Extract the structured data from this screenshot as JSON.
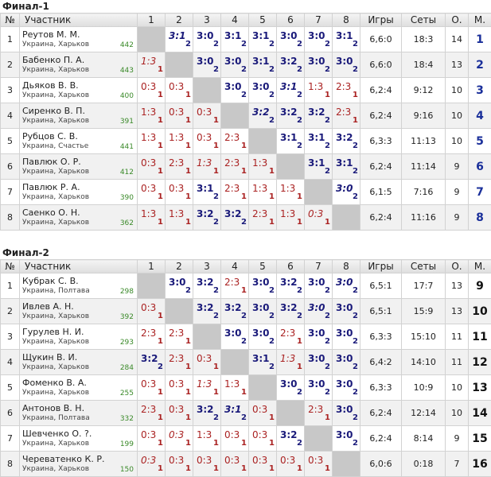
{
  "headers": {
    "num": "№",
    "name": "Участник",
    "cols": [
      "1",
      "2",
      "3",
      "4",
      "5",
      "6",
      "7",
      "8"
    ],
    "games": "Игры",
    "sets": "Сеты",
    "points": "О.",
    "place": "М."
  },
  "finals": [
    {
      "title": "Финал-1",
      "players": [
        {
          "num": "1",
          "name": "Реутов М. М.",
          "city": "Украина, Харьков",
          "rating": "442",
          "results": [
            null,
            {
              "s": "3:1",
              "p": "2",
              "w": true,
              "t": true
            },
            {
              "s": "3:0",
              "p": "2",
              "w": true
            },
            {
              "s": "3:1",
              "p": "2",
              "w": true
            },
            {
              "s": "3:1",
              "p": "2",
              "w": true
            },
            {
              "s": "3:0",
              "p": "2",
              "w": true
            },
            {
              "s": "3:0",
              "p": "2",
              "w": true
            },
            {
              "s": "3:1",
              "p": "2",
              "w": true
            }
          ],
          "games": "6,6:0",
          "sets": "18:3",
          "points": "14",
          "place": "1"
        },
        {
          "num": "2",
          "name": "Бабенко П. А.",
          "city": "Украина, Харьков",
          "rating": "443",
          "results": [
            {
              "s": "1:3",
              "p": "1",
              "w": false,
              "t": true
            },
            null,
            {
              "s": "3:0",
              "p": "2",
              "w": true
            },
            {
              "s": "3:0",
              "p": "2",
              "w": true
            },
            {
              "s": "3:1",
              "p": "2",
              "w": true
            },
            {
              "s": "3:2",
              "p": "2",
              "w": true
            },
            {
              "s": "3:0",
              "p": "2",
              "w": true
            },
            {
              "s": "3:0",
              "p": "2",
              "w": true
            }
          ],
          "games": "6,6:0",
          "sets": "18:4",
          "points": "13",
          "place": "2"
        },
        {
          "num": "3",
          "name": "Дьяков В. В.",
          "city": "Украина, Харьков",
          "rating": "400",
          "results": [
            {
              "s": "0:3",
              "p": "1",
              "w": false
            },
            {
              "s": "0:3",
              "p": "1",
              "w": false
            },
            null,
            {
              "s": "3:0",
              "p": "2",
              "w": true
            },
            {
              "s": "3:0",
              "p": "2",
              "w": true
            },
            {
              "s": "3:1",
              "p": "2",
              "w": true,
              "t": true
            },
            {
              "s": "1:3",
              "p": "1",
              "w": false
            },
            {
              "s": "2:3",
              "p": "1",
              "w": false
            }
          ],
          "games": "6,2:4",
          "sets": "9:12",
          "points": "10",
          "place": "3"
        },
        {
          "num": "4",
          "name": "Сиренко В. П.",
          "city": "Украина, Харьков",
          "rating": "391",
          "results": [
            {
              "s": "1:3",
              "p": "1",
              "w": false
            },
            {
              "s": "0:3",
              "p": "1",
              "w": false
            },
            {
              "s": "0:3",
              "p": "1",
              "w": false
            },
            null,
            {
              "s": "3:2",
              "p": "2",
              "w": true,
              "t": true
            },
            {
              "s": "3:2",
              "p": "2",
              "w": true
            },
            {
              "s": "3:2",
              "p": "2",
              "w": true
            },
            {
              "s": "2:3",
              "p": "1",
              "w": false
            }
          ],
          "games": "6,2:4",
          "sets": "9:16",
          "points": "10",
          "place": "4"
        },
        {
          "num": "5",
          "name": "Рубцов С. В.",
          "city": "Украина, Счастье",
          "rating": "441",
          "results": [
            {
              "s": "1:3",
              "p": "1",
              "w": false
            },
            {
              "s": "1:3",
              "p": "1",
              "w": false
            },
            {
              "s": "0:3",
              "p": "1",
              "w": false
            },
            {
              "s": "2:3",
              "p": "1",
              "w": false
            },
            null,
            {
              "s": "3:1",
              "p": "2",
              "w": true
            },
            {
              "s": "3:1",
              "p": "2",
              "w": true
            },
            {
              "s": "3:2",
              "p": "2",
              "w": true
            }
          ],
          "games": "6,3:3",
          "sets": "11:13",
          "points": "10",
          "place": "5"
        },
        {
          "num": "6",
          "name": "Павлюк О. Р.",
          "city": "Украина, Харьков",
          "rating": "412",
          "results": [
            {
              "s": "0:3",
              "p": "1",
              "w": false
            },
            {
              "s": "2:3",
              "p": "1",
              "w": false
            },
            {
              "s": "1:3",
              "p": "1",
              "w": false,
              "t": true
            },
            {
              "s": "2:3",
              "p": "1",
              "w": false
            },
            {
              "s": "1:3",
              "p": "1",
              "w": false
            },
            null,
            {
              "s": "3:1",
              "p": "2",
              "w": true
            },
            {
              "s": "3:1",
              "p": "2",
              "w": true
            }
          ],
          "games": "6,2:4",
          "sets": "11:14",
          "points": "9",
          "place": "6"
        },
        {
          "num": "7",
          "name": "Павлюк Р. А.",
          "city": "Украина, Харьков",
          "rating": "390",
          "results": [
            {
              "s": "0:3",
              "p": "1",
              "w": false
            },
            {
              "s": "0:3",
              "p": "1",
              "w": false
            },
            {
              "s": "3:1",
              "p": "2",
              "w": true
            },
            {
              "s": "2:3",
              "p": "1",
              "w": false
            },
            {
              "s": "1:3",
              "p": "1",
              "w": false
            },
            {
              "s": "1:3",
              "p": "1",
              "w": false
            },
            null,
            {
              "s": "3:0",
              "p": "2",
              "w": true,
              "t": true
            }
          ],
          "games": "6,1:5",
          "sets": "7:16",
          "points": "9",
          "place": "7"
        },
        {
          "num": "8",
          "name": "Саенко О. Н.",
          "city": "Украина, Харьков",
          "rating": "362",
          "results": [
            {
              "s": "1:3",
              "p": "1",
              "w": false
            },
            {
              "s": "1:3",
              "p": "1",
              "w": false
            },
            {
              "s": "3:2",
              "p": "2",
              "w": true
            },
            {
              "s": "3:2",
              "p": "2",
              "w": true
            },
            {
              "s": "2:3",
              "p": "1",
              "w": false
            },
            {
              "s": "1:3",
              "p": "1",
              "w": false
            },
            {
              "s": "0:3",
              "p": "1",
              "w": false,
              "t": true
            },
            null
          ],
          "games": "6,2:4",
          "sets": "11:16",
          "points": "9",
          "place": "8"
        }
      ]
    },
    {
      "title": "Финал-2",
      "players": [
        {
          "num": "1",
          "name": "Кубрак С. В.",
          "city": "Украина, Полтава",
          "rating": "298",
          "results": [
            null,
            {
              "s": "3:0",
              "p": "2",
              "w": true
            },
            {
              "s": "3:2",
              "p": "2",
              "w": true
            },
            {
              "s": "2:3",
              "p": "1",
              "w": false
            },
            {
              "s": "3:0",
              "p": "2",
              "w": true
            },
            {
              "s": "3:2",
              "p": "2",
              "w": true
            },
            {
              "s": "3:0",
              "p": "2",
              "w": true
            },
            {
              "s": "3:0",
              "p": "2",
              "w": true,
              "t": true
            }
          ],
          "games": "6,5:1",
          "sets": "17:7",
          "points": "13",
          "place": "9"
        },
        {
          "num": "2",
          "name": "Ивлев А. Н.",
          "city": "Украина, Харьков",
          "rating": "392",
          "results": [
            {
              "s": "0:3",
              "p": "1",
              "w": false
            },
            null,
            {
              "s": "3:2",
              "p": "2",
              "w": true
            },
            {
              "s": "3:2",
              "p": "2",
              "w": true
            },
            {
              "s": "3:0",
              "p": "2",
              "w": true
            },
            {
              "s": "3:2",
              "p": "2",
              "w": true
            },
            {
              "s": "3:0",
              "p": "2",
              "w": true,
              "t": true
            },
            {
              "s": "3:0",
              "p": "2",
              "w": true
            }
          ],
          "games": "6,5:1",
          "sets": "15:9",
          "points": "13",
          "place": "10"
        },
        {
          "num": "3",
          "name": "Гурулев Н. И.",
          "city": "Украина, Харьков",
          "rating": "293",
          "results": [
            {
              "s": "2:3",
              "p": "1",
              "w": false
            },
            {
              "s": "2:3",
              "p": "1",
              "w": false
            },
            null,
            {
              "s": "3:0",
              "p": "2",
              "w": true
            },
            {
              "s": "3:0",
              "p": "2",
              "w": true
            },
            {
              "s": "2:3",
              "p": "1",
              "w": false
            },
            {
              "s": "3:0",
              "p": "2",
              "w": true
            },
            {
              "s": "3:0",
              "p": "2",
              "w": true
            }
          ],
          "games": "6,3:3",
          "sets": "15:10",
          "points": "11",
          "place": "11"
        },
        {
          "num": "4",
          "name": "Щукин В. И.",
          "city": "Украина, Харьков",
          "rating": "284",
          "results": [
            {
              "s": "3:2",
              "p": "2",
              "w": true
            },
            {
              "s": "2:3",
              "p": "1",
              "w": false
            },
            {
              "s": "0:3",
              "p": "1",
              "w": false
            },
            null,
            {
              "s": "3:1",
              "p": "2",
              "w": true
            },
            {
              "s": "1:3",
              "p": "1",
              "w": false,
              "t": true
            },
            {
              "s": "3:0",
              "p": "2",
              "w": true
            },
            {
              "s": "3:0",
              "p": "2",
              "w": true
            }
          ],
          "games": "6,4:2",
          "sets": "14:10",
          "points": "11",
          "place": "12"
        },
        {
          "num": "5",
          "name": "Фоменко В. А.",
          "city": "Украина, Харьков",
          "rating": "255",
          "results": [
            {
              "s": "0:3",
              "p": "1",
              "w": false
            },
            {
              "s": "0:3",
              "p": "1",
              "w": false
            },
            {
              "s": "1:3",
              "p": "1",
              "w": false,
              "t": true
            },
            {
              "s": "1:3",
              "p": "1",
              "w": false
            },
            null,
            {
              "s": "3:0",
              "p": "2",
              "w": true
            },
            {
              "s": "3:0",
              "p": "2",
              "w": true
            },
            {
              "s": "3:0",
              "p": "2",
              "w": true
            }
          ],
          "games": "6,3:3",
          "sets": "10:9",
          "points": "10",
          "place": "13"
        },
        {
          "num": "6",
          "name": "Антонов В. Н.",
          "city": "Украина, Полтава",
          "rating": "332",
          "results": [
            {
              "s": "2:3",
              "p": "1",
              "w": false
            },
            {
              "s": "0:3",
              "p": "1",
              "w": false
            },
            {
              "s": "3:2",
              "p": "2",
              "w": true
            },
            {
              "s": "3:1",
              "p": "2",
              "w": true,
              "t": true
            },
            {
              "s": "0:3",
              "p": "1",
              "w": false
            },
            null,
            {
              "s": "2:3",
              "p": "1",
              "w": false
            },
            {
              "s": "3:0",
              "p": "2",
              "w": true
            }
          ],
          "games": "6,2:4",
          "sets": "12:14",
          "points": "10",
          "place": "14"
        },
        {
          "num": "7",
          "name": "Шевченко О. ?.",
          "city": "Украина, Харьков",
          "rating": "199",
          "results": [
            {
              "s": "0:3",
              "p": "1",
              "w": false
            },
            {
              "s": "0:3",
              "p": "1",
              "w": false,
              "t": true
            },
            {
              "s": "1:3",
              "p": "1",
              "w": false
            },
            {
              "s": "0:3",
              "p": "1",
              "w": false
            },
            {
              "s": "0:3",
              "p": "1",
              "w": false
            },
            {
              "s": "3:2",
              "p": "2",
              "w": true
            },
            null,
            {
              "s": "3:0",
              "p": "2",
              "w": true
            }
          ],
          "games": "6,2:4",
          "sets": "8:14",
          "points": "9",
          "place": "15"
        },
        {
          "num": "8",
          "name": "Череватенко К. Р.",
          "city": "Украина, Харьков",
          "rating": "150",
          "results": [
            {
              "s": "0:3",
              "p": "1",
              "w": false,
              "t": true
            },
            {
              "s": "0:3",
              "p": "1",
              "w": false
            },
            {
              "s": "0:3",
              "p": "1",
              "w": false
            },
            {
              "s": "0:3",
              "p": "1",
              "w": false
            },
            {
              "s": "0:3",
              "p": "1",
              "w": false
            },
            {
              "s": "0:3",
              "p": "1",
              "w": false
            },
            {
              "s": "0:3",
              "p": "1",
              "w": false
            },
            null
          ],
          "games": "6,0:6",
          "sets": "0:18",
          "points": "7",
          "place": "16"
        }
      ]
    }
  ]
}
